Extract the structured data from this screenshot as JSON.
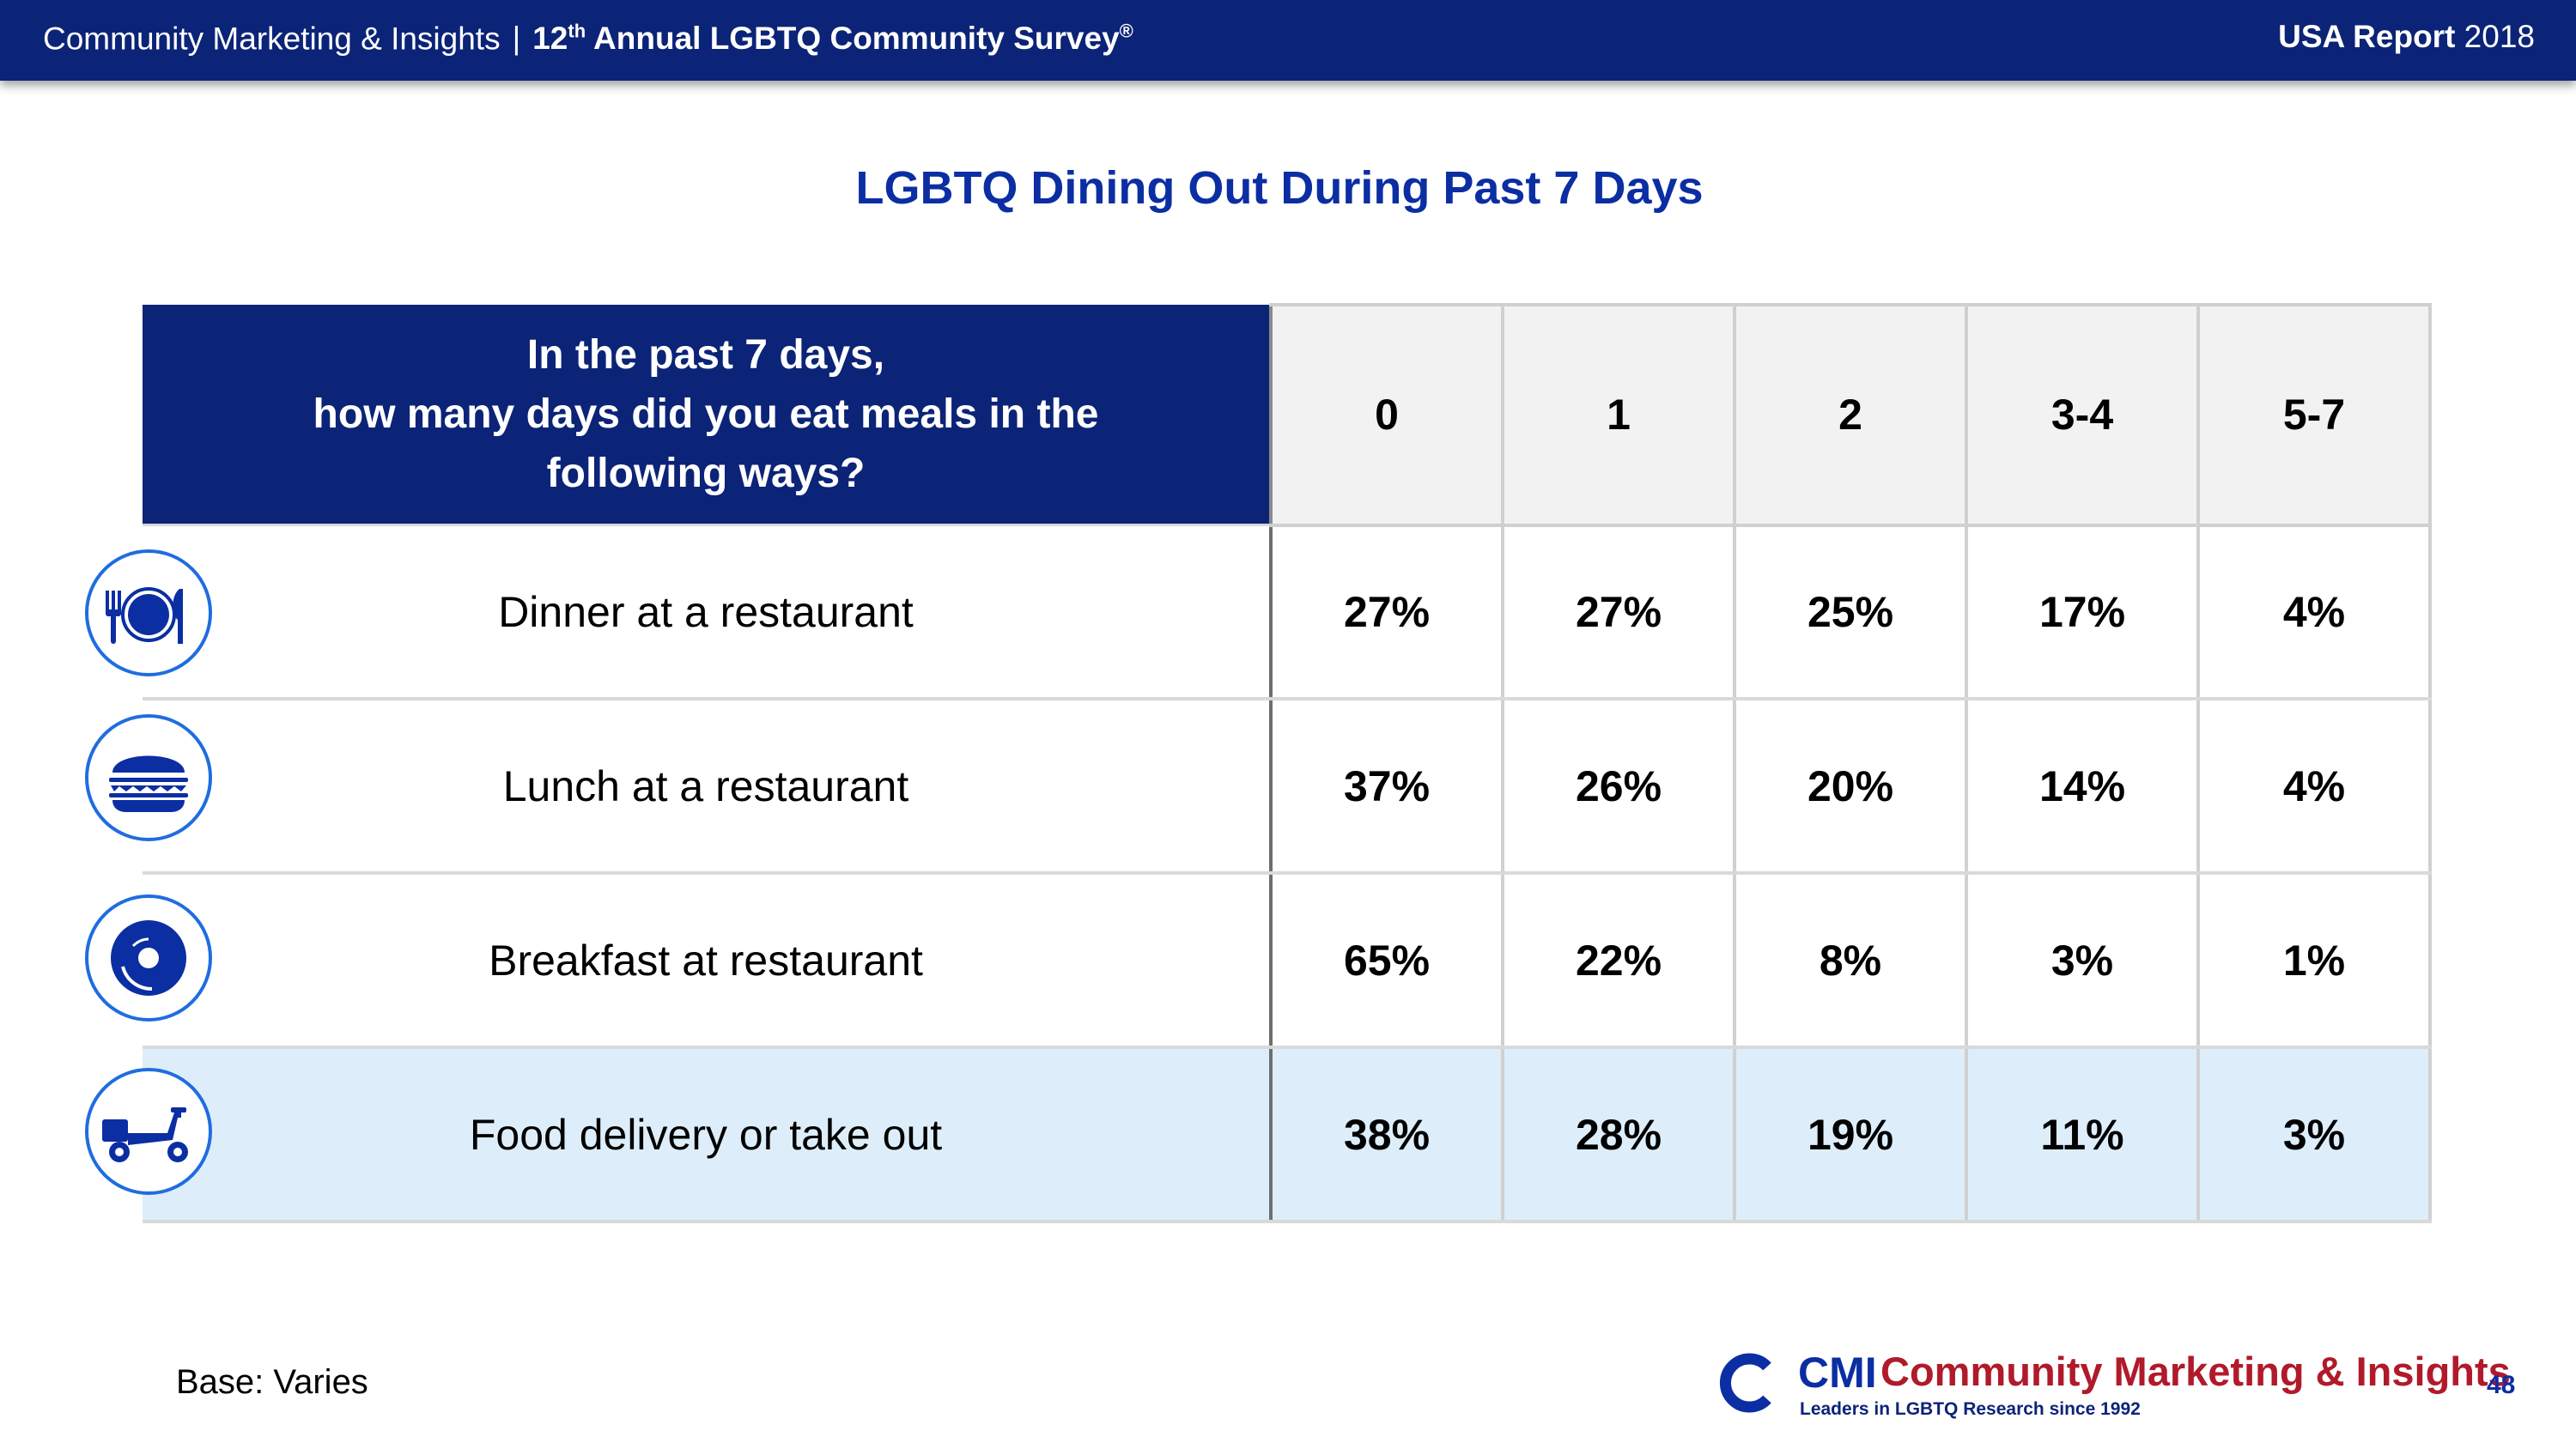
{
  "header": {
    "org": "Community Marketing & Insights",
    "separator": "|",
    "survey_prefix": "12",
    "survey_sup": "th",
    "survey_rest": " Annual LGBTQ Community Survey",
    "survey_mark": "®",
    "report_bold": "USA Report",
    "report_year": " 2018"
  },
  "title": "LGBTQ Dining Out During Past 7 Days",
  "table": {
    "question_line1": "In the past 7 days,",
    "question_line2": "how many days did you eat meals in the",
    "question_line3": "following ways?",
    "columns": [
      "0",
      "1",
      "2",
      "3-4",
      "5-7"
    ],
    "rows": [
      {
        "label": "Dinner at a restaurant",
        "icon": "dinner-plate-icon",
        "values": [
          "27%",
          "27%",
          "25%",
          "17%",
          "4%"
        ]
      },
      {
        "label": "Lunch at a restaurant",
        "icon": "burger-icon",
        "values": [
          "37%",
          "26%",
          "20%",
          "14%",
          "4%"
        ]
      },
      {
        "label": "Breakfast at restaurant",
        "icon": "donut-icon",
        "values": [
          "65%",
          "22%",
          "8%",
          "3%",
          "1%"
        ]
      },
      {
        "label": "Food delivery or take out",
        "icon": "scooter-icon",
        "values": [
          "38%",
          "28%",
          "19%",
          "11%",
          "3%"
        ]
      }
    ]
  },
  "base_note": "Base: Varies",
  "logo": {
    "cmi": "CMI",
    "name": "Community Marketing & Insights",
    "tagline": "Leaders in LGBTQ Research since 1992"
  },
  "page_number": "48",
  "colors": {
    "navy": "#0c2477",
    "title_blue": "#0c2ea3",
    "icon_blue": "#1f6de0",
    "highlight": "#ddeefa",
    "logo_red": "#b01a2a"
  }
}
